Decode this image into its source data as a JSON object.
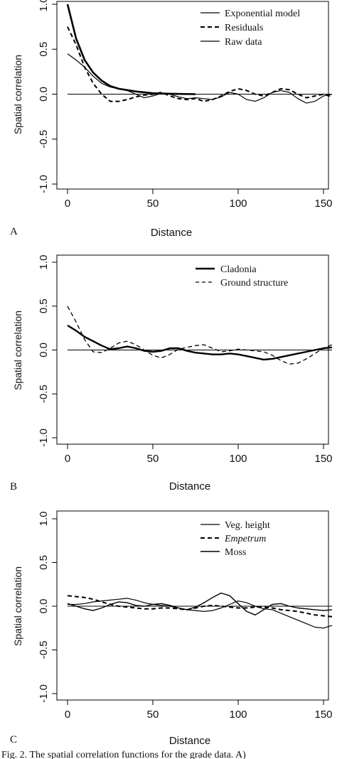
{
  "chart_data": [
    {
      "panel": "A",
      "type": "line",
      "xlabel": "Distance",
      "ylabel": "Spatial correlation",
      "xlim": [
        0,
        155
      ],
      "ylim": [
        -1.0,
        1.0
      ],
      "xticks": [
        "0",
        "50",
        "100",
        "150"
      ],
      "yticks": [
        "-1.0",
        "-0.5",
        "0.0",
        "0.5",
        "1.0"
      ],
      "zero_line": true,
      "legend": "top-right",
      "series": [
        {
          "name": "Exponential model",
          "style": "solid",
          "width": 2.6,
          "x": [
            0,
            5,
            10,
            15,
            20,
            25,
            30,
            40,
            50,
            60,
            75
          ],
          "y": [
            1.0,
            0.62,
            0.38,
            0.24,
            0.15,
            0.09,
            0.06,
            0.03,
            0.01,
            0.005,
            0.0
          ]
        },
        {
          "name": "Residuals",
          "style": "dashed",
          "width": 2.0,
          "x": [
            0,
            5,
            10,
            15,
            20,
            25,
            30,
            35,
            40,
            45,
            50,
            55,
            60,
            65,
            70,
            75,
            80,
            85,
            90,
            95,
            100,
            105,
            110,
            115,
            120,
            125,
            130,
            135,
            140,
            145,
            150,
            155
          ],
          "y": [
            0.75,
            0.55,
            0.3,
            0.12,
            0.0,
            -0.08,
            -0.08,
            -0.06,
            -0.03,
            -0.01,
            0.0,
            0.02,
            -0.02,
            -0.05,
            -0.06,
            -0.05,
            -0.08,
            -0.06,
            -0.02,
            0.03,
            0.06,
            0.04,
            0.0,
            -0.02,
            0.02,
            0.06,
            0.05,
            0.0,
            -0.04,
            -0.02,
            0.0,
            -0.03
          ]
        },
        {
          "name": "Raw data",
          "style": "solid",
          "width": 1.2,
          "x": [
            0,
            5,
            10,
            15,
            20,
            25,
            30,
            35,
            40,
            45,
            50,
            55,
            60,
            65,
            70,
            75,
            80,
            85,
            90,
            95,
            100,
            105,
            110,
            115,
            120,
            125,
            130,
            135,
            140,
            145,
            150,
            155
          ],
          "y": [
            0.45,
            0.38,
            0.3,
            0.2,
            0.12,
            0.08,
            0.06,
            0.04,
            0.0,
            -0.04,
            -0.02,
            0.01,
            0.0,
            -0.03,
            -0.05,
            -0.04,
            -0.05,
            -0.06,
            -0.03,
            0.02,
            0.0,
            -0.06,
            -0.08,
            -0.04,
            0.02,
            0.04,
            0.02,
            -0.05,
            -0.1,
            -0.08,
            -0.02,
            0.0
          ]
        }
      ]
    },
    {
      "panel": "B",
      "type": "line",
      "xlabel": "Distance",
      "ylabel": "Spatial correlation",
      "xlim": [
        0,
        155
      ],
      "ylim": [
        -1.0,
        1.0
      ],
      "xticks": [
        "0",
        "50",
        "100",
        "150"
      ],
      "yticks": [
        "-1.0",
        "-0.5",
        "0.0",
        "0.5",
        "1.0"
      ],
      "zero_line": true,
      "legend": "top-right",
      "series": [
        {
          "name": "Cladonia",
          "style": "solid",
          "width": 2.4,
          "x": [
            0,
            5,
            10,
            15,
            20,
            25,
            30,
            35,
            40,
            45,
            50,
            55,
            60,
            65,
            70,
            75,
            80,
            85,
            90,
            95,
            100,
            105,
            110,
            115,
            120,
            125,
            130,
            135,
            140,
            145,
            150,
            155
          ],
          "y": [
            0.28,
            0.22,
            0.15,
            0.1,
            0.05,
            0.01,
            0.02,
            0.04,
            0.02,
            -0.01,
            -0.02,
            -0.01,
            0.02,
            0.02,
            -0.01,
            -0.03,
            -0.04,
            -0.05,
            -0.05,
            -0.04,
            -0.05,
            -0.07,
            -0.09,
            -0.11,
            -0.1,
            -0.08,
            -0.06,
            -0.04,
            -0.02,
            0.0,
            0.02,
            0.03
          ]
        },
        {
          "name": "Ground structure",
          "style": "dashed",
          "width": 1.3,
          "x": [
            0,
            5,
            10,
            15,
            20,
            25,
            30,
            35,
            40,
            45,
            50,
            55,
            60,
            65,
            70,
            75,
            80,
            85,
            90,
            95,
            100,
            105,
            110,
            115,
            120,
            125,
            130,
            135,
            140,
            145,
            150,
            155
          ],
          "y": [
            0.5,
            0.32,
            0.12,
            -0.02,
            -0.03,
            0.02,
            0.08,
            0.1,
            0.06,
            0.0,
            -0.06,
            -0.09,
            -0.05,
            0.01,
            0.03,
            0.05,
            0.06,
            0.02,
            -0.02,
            -0.01,
            0.01,
            0.0,
            -0.01,
            -0.02,
            -0.06,
            -0.12,
            -0.16,
            -0.15,
            -0.1,
            -0.04,
            0.02,
            0.06
          ]
        }
      ]
    },
    {
      "panel": "C",
      "type": "line",
      "xlabel": "Distance",
      "ylabel": "Spatial correlation",
      "xlim": [
        0,
        155
      ],
      "ylim": [
        -1.0,
        1.0
      ],
      "xticks": [
        "0",
        "50",
        "100",
        "150"
      ],
      "yticks": [
        "-1.0",
        "-0.5",
        "0.0",
        "0.5",
        "1.0"
      ],
      "zero_line": true,
      "legend": "top-right",
      "series": [
        {
          "name": "Veg. height",
          "style": "solid",
          "width": 1.2,
          "x": [
            0,
            5,
            10,
            15,
            20,
            25,
            30,
            35,
            40,
            45,
            50,
            55,
            60,
            65,
            70,
            75,
            80,
            85,
            90,
            95,
            100,
            105,
            110,
            115,
            120,
            125,
            130,
            135,
            140,
            145,
            150,
            155
          ],
          "y": [
            0.02,
            0.02,
            0.03,
            0.05,
            0.06,
            0.07,
            0.08,
            0.09,
            0.07,
            0.04,
            0.02,
            0.01,
            0.0,
            -0.02,
            -0.04,
            -0.05,
            -0.06,
            -0.05,
            -0.02,
            0.02,
            0.06,
            0.04,
            0.0,
            -0.03,
            -0.04,
            -0.08,
            -0.12,
            -0.16,
            -0.2,
            -0.24,
            -0.25,
            -0.22
          ]
        },
        {
          "name": "Empetrum",
          "style": "dashed",
          "width": 2.0,
          "italic": true,
          "x": [
            0,
            5,
            10,
            15,
            20,
            25,
            30,
            35,
            40,
            45,
            50,
            55,
            60,
            65,
            70,
            75,
            80,
            85,
            90,
            95,
            100,
            105,
            110,
            115,
            120,
            125,
            130,
            135,
            140,
            145,
            150,
            155
          ],
          "y": [
            0.12,
            0.11,
            0.1,
            0.08,
            0.05,
            0.02,
            0.0,
            -0.01,
            -0.02,
            -0.03,
            -0.03,
            -0.02,
            -0.02,
            -0.03,
            -0.04,
            -0.02,
            0.0,
            0.01,
            0.0,
            -0.01,
            -0.02,
            -0.02,
            -0.01,
            -0.01,
            -0.02,
            -0.04,
            -0.05,
            -0.06,
            -0.08,
            -0.1,
            -0.11,
            -0.12
          ]
        },
        {
          "name": "Moss",
          "style": "solid",
          "width": 1.4,
          "x": [
            0,
            5,
            10,
            15,
            20,
            25,
            30,
            35,
            40,
            45,
            50,
            55,
            60,
            65,
            70,
            75,
            80,
            85,
            90,
            95,
            100,
            105,
            110,
            115,
            120,
            125,
            130,
            135,
            140,
            145,
            150,
            155
          ],
          "y": [
            0.03,
            0.0,
            -0.03,
            -0.05,
            -0.02,
            0.02,
            0.05,
            0.04,
            0.01,
            0.0,
            0.02,
            0.03,
            0.01,
            -0.02,
            -0.04,
            -0.01,
            0.04,
            0.1,
            0.15,
            0.12,
            0.03,
            -0.06,
            -0.1,
            -0.04,
            0.02,
            0.03,
            0.0,
            -0.02,
            -0.03,
            -0.04,
            -0.05,
            -0.04
          ]
        }
      ]
    }
  ],
  "caption_fragment": "Fig. 2.  The spatial correlation functions for the grade data. A)"
}
